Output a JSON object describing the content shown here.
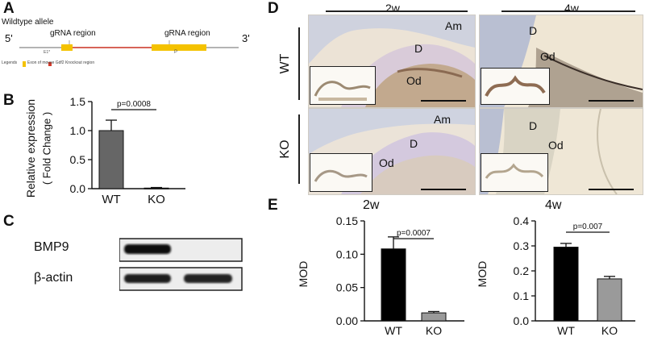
{
  "panels": {
    "a": "A",
    "b": "B",
    "c": "C",
    "d": "D",
    "e": "E"
  },
  "panelA": {
    "title": "Wildtype allele",
    "end5": "5'",
    "end3": "3'",
    "grna1": "gRNA region",
    "grna2": "gRNA region",
    "small1": "E1*",
    "small2": "P",
    "legend": "Legends",
    "legend_item": "Exon of mouse Gdf2 Knockout region",
    "colors": {
      "exon": "#f4c200",
      "line": "#d43a2a"
    }
  },
  "panelB": {
    "ylabel1": "Relative expression",
    "ylabel2": "( Fold Change )",
    "pvalue": "p=0.0008"
  },
  "panelC": {
    "row1": "BMP9",
    "row2": "β-actin"
  },
  "panelD": {
    "col1": "2w",
    "col2": "4w",
    "row1": "WT",
    "row2": "KO",
    "labels": {
      "am": "Am",
      "d": "D",
      "od": "Od"
    }
  },
  "panelE": {
    "title1": "2w",
    "title2": "4w",
    "ylabel": "MOD",
    "p1": "p=0.0007",
    "p2": "p=0.007"
  },
  "chart_data": [
    {
      "type": "bar",
      "categories": [
        "WT",
        "KO"
      ],
      "values": [
        1.0,
        0.01
      ],
      "errors": [
        0.18,
        0.01
      ],
      "colors": [
        "#666666",
        "#444444"
      ],
      "ylim": [
        0,
        1.5
      ],
      "yticks": [
        "0.0",
        "0.5",
        "1.0",
        "1.5"
      ],
      "ytick_values": [
        0,
        0.5,
        1.0,
        1.5
      ],
      "ylabel": "Relative expression ( Fold Change )",
      "annotation": "p=0.0008"
    },
    {
      "type": "bar",
      "title": "2w",
      "categories": [
        "WT",
        "KO"
      ],
      "values": [
        0.108,
        0.012
      ],
      "errors": [
        0.018,
        0.002
      ],
      "colors": [
        "#000000",
        "#9a9a9a"
      ],
      "ylim": [
        0,
        0.15
      ],
      "yticks": [
        "0.00",
        "0.05",
        "0.10",
        "0.15"
      ],
      "ytick_values": [
        0,
        0.05,
        0.1,
        0.15
      ],
      "ylabel": "MOD",
      "annotation": "p=0.0007"
    },
    {
      "type": "bar",
      "title": "4w",
      "categories": [
        "WT",
        "KO"
      ],
      "values": [
        0.295,
        0.168
      ],
      "errors": [
        0.015,
        0.01
      ],
      "colors": [
        "#000000",
        "#9a9a9a"
      ],
      "ylim": [
        0,
        0.4
      ],
      "yticks": [
        "0.0",
        "0.1",
        "0.2",
        "0.3",
        "0.4"
      ],
      "ytick_values": [
        0,
        0.1,
        0.2,
        0.3,
        0.4
      ],
      "ylabel": "MOD",
      "annotation": "p=0.007"
    }
  ]
}
